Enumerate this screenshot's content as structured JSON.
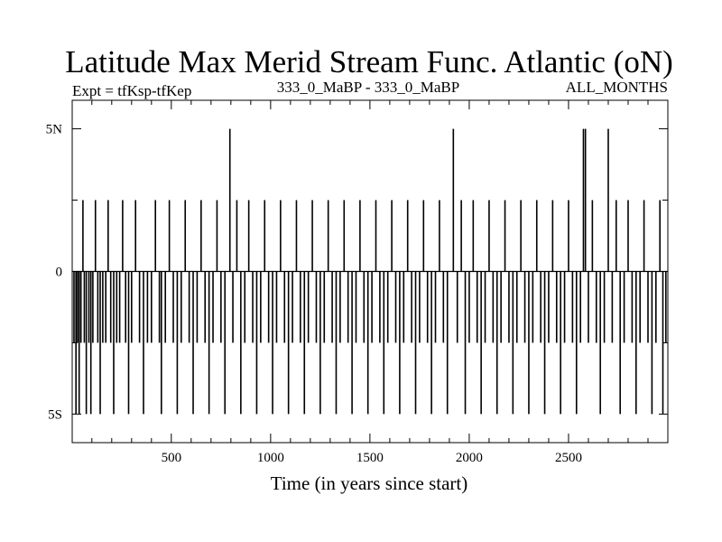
{
  "chart_data": {
    "type": "line",
    "title": "Latitude Max Merid Stream Func. Atlantic (oN)",
    "subtitle_left": "Expt = tfKsp-tfKep",
    "subtitle_center": "333_0_MaBP - 333_0_MaBP",
    "subtitle_right": "ALL_MONTHS",
    "xlabel": "Time (in years since start)",
    "ylabel": "",
    "xlim": [
      1,
      3000
    ],
    "ylim": [
      -6,
      6
    ],
    "x_ticks": [
      500,
      1000,
      1500,
      2000,
      2500
    ],
    "x_tick_labels": [
      "500",
      "1000",
      "1500",
      "2000",
      "2500"
    ],
    "y_ticks": [
      -5,
      0,
      5
    ],
    "y_tick_labels": [
      "5S",
      "0",
      "5N"
    ],
    "grid": false,
    "series": [
      {
        "values_description_omitted": true,
        "spikes": [
          {
            "x": 10,
            "y": -2.5
          },
          {
            "x": 20,
            "y": -5
          },
          {
            "x": 28,
            "y": -2.5
          },
          {
            "x": 36,
            "y": -5
          },
          {
            "x": 45,
            "y": -2.5
          },
          {
            "x": 55,
            "y": 2.5
          },
          {
            "x": 62,
            "y": -2.5
          },
          {
            "x": 72,
            "y": -5
          },
          {
            "x": 85,
            "y": -2.5
          },
          {
            "x": 95,
            "y": -5
          },
          {
            "x": 105,
            "y": -2.5
          },
          {
            "x": 118,
            "y": 2.5
          },
          {
            "x": 130,
            "y": -2.5
          },
          {
            "x": 142,
            "y": -5
          },
          {
            "x": 155,
            "y": -2.5
          },
          {
            "x": 170,
            "y": -2.5
          },
          {
            "x": 182,
            "y": 2.5
          },
          {
            "x": 195,
            "y": -2.5
          },
          {
            "x": 210,
            "y": -5
          },
          {
            "x": 225,
            "y": -2.5
          },
          {
            "x": 240,
            "y": -2.5
          },
          {
            "x": 255,
            "y": 2.5
          },
          {
            "x": 270,
            "y": -2.5
          },
          {
            "x": 285,
            "y": -5
          },
          {
            "x": 300,
            "y": -2.5
          },
          {
            "x": 320,
            "y": 2.5
          },
          {
            "x": 340,
            "y": -2.5
          },
          {
            "x": 360,
            "y": -5
          },
          {
            "x": 380,
            "y": -2.5
          },
          {
            "x": 400,
            "y": -2.5
          },
          {
            "x": 420,
            "y": 2.5
          },
          {
            "x": 440,
            "y": -2.5
          },
          {
            "x": 450,
            "y": -5
          },
          {
            "x": 470,
            "y": -2.5
          },
          {
            "x": 490,
            "y": 2.5
          },
          {
            "x": 510,
            "y": -2.5
          },
          {
            "x": 530,
            "y": -5
          },
          {
            "x": 550,
            "y": -2.5
          },
          {
            "x": 570,
            "y": 2.5
          },
          {
            "x": 590,
            "y": -2.5
          },
          {
            "x": 610,
            "y": -5
          },
          {
            "x": 630,
            "y": -2.5
          },
          {
            "x": 650,
            "y": 2.5
          },
          {
            "x": 670,
            "y": -2.5
          },
          {
            "x": 690,
            "y": -5
          },
          {
            "x": 710,
            "y": -2.5
          },
          {
            "x": 730,
            "y": 2.5
          },
          {
            "x": 750,
            "y": -2.5
          },
          {
            "x": 770,
            "y": -5
          },
          {
            "x": 795,
            "y": 5
          },
          {
            "x": 810,
            "y": -2.5
          },
          {
            "x": 830,
            "y": 2.5
          },
          {
            "x": 850,
            "y": -5
          },
          {
            "x": 870,
            "y": -2.5
          },
          {
            "x": 890,
            "y": 2.5
          },
          {
            "x": 910,
            "y": -2.5
          },
          {
            "x": 930,
            "y": -5
          },
          {
            "x": 950,
            "y": -2.5
          },
          {
            "x": 970,
            "y": 2.5
          },
          {
            "x": 990,
            "y": -2.5
          },
          {
            "x": 1010,
            "y": -5
          },
          {
            "x": 1030,
            "y": -2.5
          },
          {
            "x": 1050,
            "y": 2.5
          },
          {
            "x": 1070,
            "y": -2.5
          },
          {
            "x": 1090,
            "y": -5
          },
          {
            "x": 1110,
            "y": -2.5
          },
          {
            "x": 1130,
            "y": 2.5
          },
          {
            "x": 1150,
            "y": -2.5
          },
          {
            "x": 1170,
            "y": -5
          },
          {
            "x": 1190,
            "y": -2.5
          },
          {
            "x": 1210,
            "y": 2.5
          },
          {
            "x": 1230,
            "y": -2.5
          },
          {
            "x": 1250,
            "y": -5
          },
          {
            "x": 1270,
            "y": -2.5
          },
          {
            "x": 1290,
            "y": 2.5
          },
          {
            "x": 1310,
            "y": -2.5
          },
          {
            "x": 1330,
            "y": -5
          },
          {
            "x": 1350,
            "y": -2.5
          },
          {
            "x": 1370,
            "y": 2.5
          },
          {
            "x": 1390,
            "y": -2.5
          },
          {
            "x": 1410,
            "y": -5
          },
          {
            "x": 1430,
            "y": -2.5
          },
          {
            "x": 1450,
            "y": 2.5
          },
          {
            "x": 1470,
            "y": -2.5
          },
          {
            "x": 1490,
            "y": -5
          },
          {
            "x": 1510,
            "y": -2.5
          },
          {
            "x": 1530,
            "y": 2.5
          },
          {
            "x": 1550,
            "y": -2.5
          },
          {
            "x": 1570,
            "y": -5
          },
          {
            "x": 1590,
            "y": -2.5
          },
          {
            "x": 1610,
            "y": 2.5
          },
          {
            "x": 1630,
            "y": -2.5
          },
          {
            "x": 1650,
            "y": -5
          },
          {
            "x": 1670,
            "y": -2.5
          },
          {
            "x": 1690,
            "y": 2.5
          },
          {
            "x": 1710,
            "y": -2.5
          },
          {
            "x": 1730,
            "y": -5
          },
          {
            "x": 1750,
            "y": -2.5
          },
          {
            "x": 1770,
            "y": 2.5
          },
          {
            "x": 1790,
            "y": -2.5
          },
          {
            "x": 1810,
            "y": -5
          },
          {
            "x": 1830,
            "y": -2.5
          },
          {
            "x": 1850,
            "y": 2.5
          },
          {
            "x": 1870,
            "y": -2.5
          },
          {
            "x": 1890,
            "y": -5
          },
          {
            "x": 1920,
            "y": 5
          },
          {
            "x": 1940,
            "y": -2.5
          },
          {
            "x": 1960,
            "y": 2.5
          },
          {
            "x": 1980,
            "y": -5
          },
          {
            "x": 2000,
            "y": -2.5
          },
          {
            "x": 2020,
            "y": 2.5
          },
          {
            "x": 2040,
            "y": -2.5
          },
          {
            "x": 2060,
            "y": -5
          },
          {
            "x": 2080,
            "y": -2.5
          },
          {
            "x": 2100,
            "y": 2.5
          },
          {
            "x": 2120,
            "y": -2.5
          },
          {
            "x": 2140,
            "y": -5
          },
          {
            "x": 2160,
            "y": -2.5
          },
          {
            "x": 2180,
            "y": 2.5
          },
          {
            "x": 2200,
            "y": -2.5
          },
          {
            "x": 2220,
            "y": -5
          },
          {
            "x": 2240,
            "y": -2.5
          },
          {
            "x": 2260,
            "y": 2.5
          },
          {
            "x": 2280,
            "y": -2.5
          },
          {
            "x": 2300,
            "y": -5
          },
          {
            "x": 2320,
            "y": -2.5
          },
          {
            "x": 2340,
            "y": 2.5
          },
          {
            "x": 2360,
            "y": -2.5
          },
          {
            "x": 2380,
            "y": -5
          },
          {
            "x": 2400,
            "y": -2.5
          },
          {
            "x": 2420,
            "y": 2.5
          },
          {
            "x": 2440,
            "y": -2.5
          },
          {
            "x": 2460,
            "y": -5
          },
          {
            "x": 2480,
            "y": -2.5
          },
          {
            "x": 2500,
            "y": 2.5
          },
          {
            "x": 2520,
            "y": -2.5
          },
          {
            "x": 2540,
            "y": -5
          },
          {
            "x": 2560,
            "y": -2.5
          },
          {
            "x": 2575,
            "y": 5
          },
          {
            "x": 2585,
            "y": 5
          },
          {
            "x": 2600,
            "y": -2.5
          },
          {
            "x": 2620,
            "y": 2.5
          },
          {
            "x": 2640,
            "y": -2.5
          },
          {
            "x": 2660,
            "y": -5
          },
          {
            "x": 2680,
            "y": -2.5
          },
          {
            "x": 2700,
            "y": 5
          },
          {
            "x": 2720,
            "y": -2.5
          },
          {
            "x": 2740,
            "y": 2.5
          },
          {
            "x": 2760,
            "y": -5
          },
          {
            "x": 2780,
            "y": -2.5
          },
          {
            "x": 2800,
            "y": 2.5
          },
          {
            "x": 2820,
            "y": -2.5
          },
          {
            "x": 2840,
            "y": -5
          },
          {
            "x": 2860,
            "y": -2.5
          },
          {
            "x": 2880,
            "y": 2.5
          },
          {
            "x": 2900,
            "y": -2.5
          },
          {
            "x": 2920,
            "y": -5
          },
          {
            "x": 2940,
            "y": -2.5
          },
          {
            "x": 2960,
            "y": 2.5
          },
          {
            "x": 2975,
            "y": -5
          },
          {
            "x": 2990,
            "y": -2.5
          }
        ]
      }
    ]
  }
}
